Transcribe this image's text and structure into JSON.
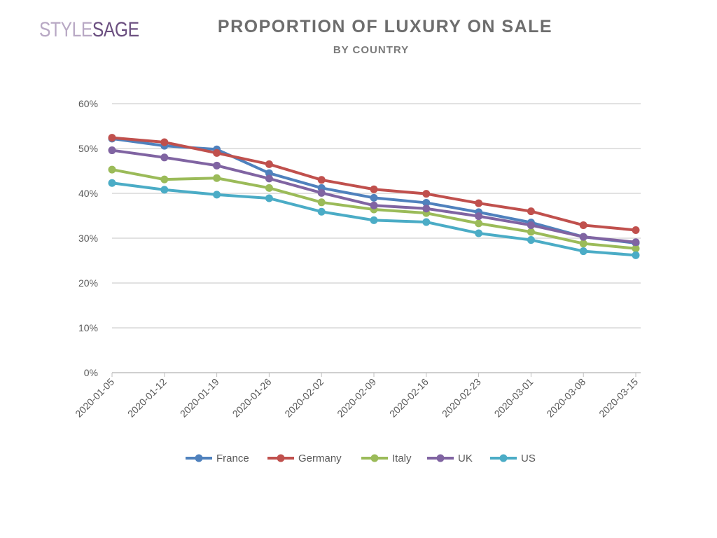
{
  "logo": {
    "part1": "STYLE",
    "part2": "SAGE"
  },
  "header": {
    "title": "PROPORTION OF LUXURY ON SALE",
    "subtitle": "BY COUNTRY"
  },
  "chart_data": {
    "type": "line",
    "title": "PROPORTION OF LUXURY ON SALE",
    "subtitle": "BY COUNTRY",
    "xlabel": "",
    "ylabel": "",
    "x": [
      "2020-01-05",
      "2020-01-12",
      "2020-01-19",
      "2020-01-26",
      "2020-02-02",
      "2020-02-09",
      "2020-02-16",
      "2020-02-23",
      "2020-03-01",
      "2020-03-08",
      "2020-03-15"
    ],
    "ylim": [
      0,
      60
    ],
    "yticks": [
      "0%",
      "10%",
      "20%",
      "30%",
      "40%",
      "50%",
      "60%"
    ],
    "grid": true,
    "legend_position": "bottom",
    "series": [
      {
        "name": "France",
        "color": "#4f81bd",
        "values": [
          52.2,
          50.6,
          49.8,
          44.5,
          41.2,
          39.0,
          37.9,
          35.8,
          33.5,
          30.3,
          28.9
        ]
      },
      {
        "name": "Germany",
        "color": "#c0504d",
        "values": [
          52.4,
          51.4,
          49.0,
          46.5,
          43.0,
          40.9,
          39.9,
          37.8,
          36.0,
          32.9,
          31.8
        ]
      },
      {
        "name": "Italy",
        "color": "#9bbb59",
        "values": [
          45.3,
          43.1,
          43.4,
          41.2,
          38.0,
          36.4,
          35.6,
          33.3,
          31.4,
          28.8,
          27.7
        ]
      },
      {
        "name": "UK",
        "color": "#8064a2",
        "values": [
          49.6,
          48.0,
          46.2,
          43.3,
          40.1,
          37.3,
          36.6,
          34.9,
          32.9,
          30.3,
          29.1
        ]
      },
      {
        "name": "US",
        "color": "#4bacc6",
        "values": [
          42.3,
          40.8,
          39.7,
          38.9,
          35.9,
          34.0,
          33.6,
          31.1,
          29.6,
          27.1,
          26.2
        ]
      }
    ]
  }
}
